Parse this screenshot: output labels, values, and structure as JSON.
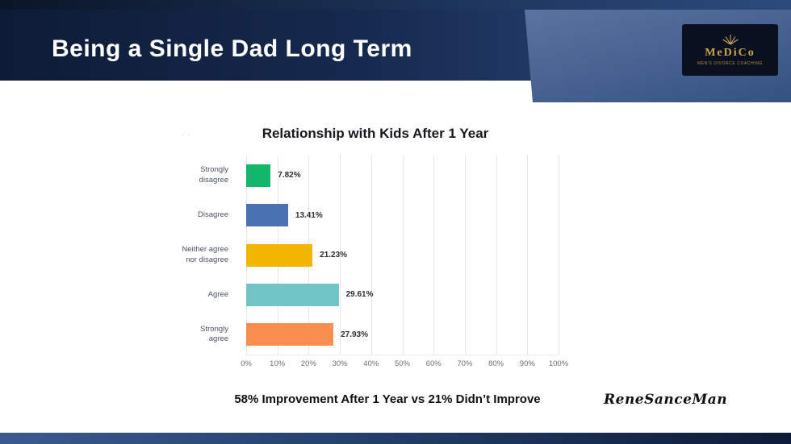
{
  "slide": {
    "title": "Being a Single Dad Long Term",
    "note": "58% Improvement After 1 Year vs 21% Didn’t Improve",
    "signature": "ReneSanceMan",
    "artifact_dots": "· ·"
  },
  "logo": {
    "name": "MeDiCo",
    "subtitle": "MEN'S DIVORCE COACHING",
    "accent_color": "#c9a84c",
    "background_color": "#0a1020"
  },
  "chart_data": {
    "type": "bar",
    "orientation": "horizontal",
    "title": "Relationship with Kids After 1 Year",
    "categories": [
      "Strongly disagree",
      "Disagree",
      "Neither agree nor disagree",
      "Agree",
      "Strongly agree"
    ],
    "values": [
      7.82,
      13.41,
      21.23,
      29.61,
      27.93
    ],
    "value_labels": [
      "7.82%",
      "13.41%",
      "21.23%",
      "29.61%",
      "27.93%"
    ],
    "bar_colors": [
      "#12b76a",
      "#4a72b2",
      "#f2b600",
      "#70c4c6",
      "#fa8e51"
    ],
    "xlim": [
      0,
      100
    ],
    "x_ticks": [
      "0%",
      "10%",
      "20%",
      "30%",
      "40%",
      "50%",
      "60%",
      "70%",
      "80%",
      "90%",
      "100%"
    ],
    "grid": true,
    "legend": false
  }
}
